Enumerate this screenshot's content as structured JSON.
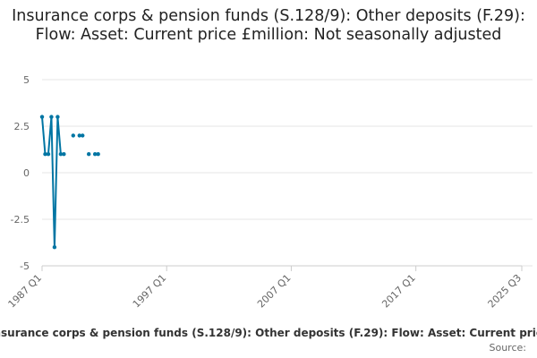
{
  "chart_data": {
    "type": "line",
    "title": "Insurance corps & pension funds (S.128/9): Other deposits (F.29): Flow: Asset: Current price £million: Not seasonally adjusted",
    "xlabel": "",
    "ylabel": "",
    "x_ticks": [
      "1987 Q1",
      "1997 Q1",
      "2007 Q1",
      "2017 Q1",
      "2025 Q3"
    ],
    "y_ticks": [
      "5",
      "2.5",
      "0",
      "-2.5",
      "-5"
    ],
    "ylim": [
      -5,
      5
    ],
    "grid": true,
    "series": [
      {
        "name": "Insurance corps & pension funds (S.128/9): Other deposits (F.29): Flow: Asset: Current price £million: Not seasonally adjusted",
        "color": "#0075a3",
        "points": [
          {
            "x": "1987 Q1",
            "y": 3
          },
          {
            "x": "1987 Q2",
            "y": 1
          },
          {
            "x": "1987 Q3",
            "y": 1
          },
          {
            "x": "1987 Q4",
            "y": 3
          },
          {
            "x": "1988 Q1",
            "y": -4
          },
          {
            "x": "1988 Q2",
            "y": 3
          },
          {
            "x": "1988 Q3",
            "y": 1
          },
          {
            "x": "1988 Q4",
            "y": 1
          },
          {
            "x": "1989 Q1",
            "y": null
          },
          {
            "x": "1989 Q2",
            "y": null
          },
          {
            "x": "1989 Q3",
            "y": 2
          },
          {
            "x": "1989 Q4",
            "y": null
          },
          {
            "x": "1990 Q1",
            "y": 2
          },
          {
            "x": "1990 Q2",
            "y": 2
          },
          {
            "x": "1990 Q3",
            "y": null
          },
          {
            "x": "1990 Q4",
            "y": 1
          },
          {
            "x": "1991 Q1",
            "y": null
          },
          {
            "x": "1991 Q2",
            "y": 1
          },
          {
            "x": "1991 Q3",
            "y": 1
          }
        ]
      }
    ]
  },
  "source_label": "Source:"
}
